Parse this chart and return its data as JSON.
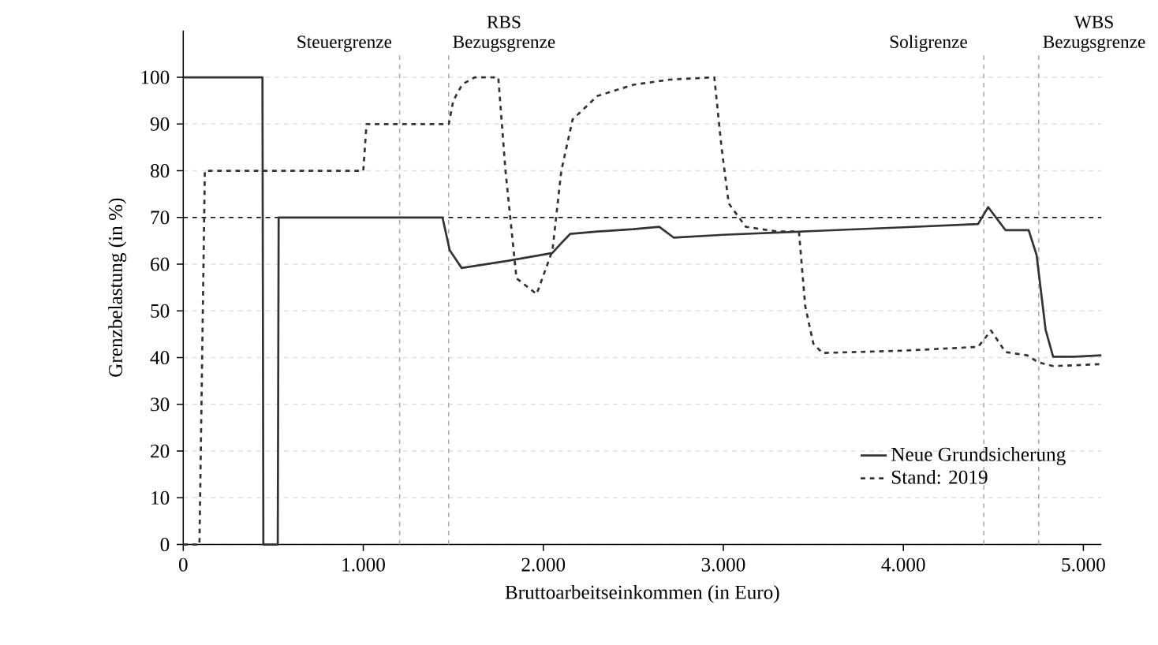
{
  "chart_data": {
    "type": "line",
    "xlabel": "Bruttoarbeitseinkommen (in Euro)",
    "ylabel": "Grenzbelastung (in %)",
    "xlim": [
      0,
      5100
    ],
    "ylim": [
      0,
      110
    ],
    "xticks": [
      0,
      {
        "value": 1000,
        "label": "1.000"
      },
      {
        "value": 2000,
        "label": "2.000"
      },
      {
        "value": 3000,
        "label": "3.000"
      },
      {
        "value": 4000,
        "label": "4.000"
      },
      {
        "value": 5000,
        "label": "5.000"
      }
    ],
    "yticks": [
      0,
      10,
      20,
      30,
      40,
      50,
      60,
      70,
      80,
      90,
      100
    ],
    "grid": "y",
    "legend": "bottom right",
    "series": [
      {
        "name": "Neue Grundsicherung",
        "color": "#333333",
        "line_style": "solid",
        "x": [
          0,
          440,
          445,
          525,
          530,
          1440,
          1480,
          1546,
          1800,
          2050,
          2100,
          2150,
          2300,
          2500,
          2644,
          2724,
          3000,
          3500,
          4000,
          4415,
          4471,
          4567,
          4696,
          4740,
          4790,
          4832,
          4950,
          5100
        ],
        "values": [
          100,
          100,
          0,
          0,
          70,
          70,
          63,
          59.2,
          60.7,
          62.4,
          64.5,
          66.5,
          67,
          67.5,
          68,
          65.7,
          66.3,
          67.1,
          67.9,
          68.6,
          72.2,
          67.3,
          67.3,
          62,
          46,
          40.2,
          40.2,
          40.5
        ]
      },
      {
        "name": "Stand: 2019",
        "color": "#333333",
        "line_style": "dashed",
        "x": [
          0,
          90,
          120,
          1000,
          1018,
          1475,
          1500,
          1550,
          1620,
          1750,
          1790,
          1851,
          1963,
          2051,
          2100,
          2163,
          2300,
          2500,
          2700,
          2950,
          2990,
          3030,
          3125,
          3300,
          3420,
          3455,
          3500,
          3550,
          4000,
          4415,
          4487,
          4567,
          4688,
          4750,
          4832,
          5100
        ],
        "values": [
          0,
          0,
          80,
          80,
          90,
          90,
          95,
          98.5,
          100,
          100,
          80,
          57,
          53.6,
          63,
          80,
          91,
          96,
          98.4,
          99.5,
          100,
          85,
          73,
          68,
          67,
          67,
          51,
          43,
          41,
          41.5,
          42.3,
          45.8,
          41.2,
          40.5,
          39,
          38.2,
          38.6
        ]
      }
    ],
    "ref_lines": [
      {
        "axis": "y",
        "value": 70,
        "color": "#000000",
        "line_style": "dashed"
      },
      {
        "axis": "x",
        "value": 1202,
        "label": "Steuergrenze",
        "color": "#aaaaaa",
        "line_style": "dashed"
      },
      {
        "axis": "x",
        "value": 1474,
        "label": "RBS Bezugsgrenze",
        "color": "#aaaaaa",
        "line_style": "dashed"
      },
      {
        "axis": "x",
        "value": 4447,
        "label": "Soligrenze",
        "color": "#aaaaaa",
        "line_style": "dashed"
      },
      {
        "axis": "x",
        "value": 4752,
        "label": "WBS Bezugsgrenze",
        "color": "#aaaaaa",
        "line_style": "dashed"
      }
    ]
  }
}
